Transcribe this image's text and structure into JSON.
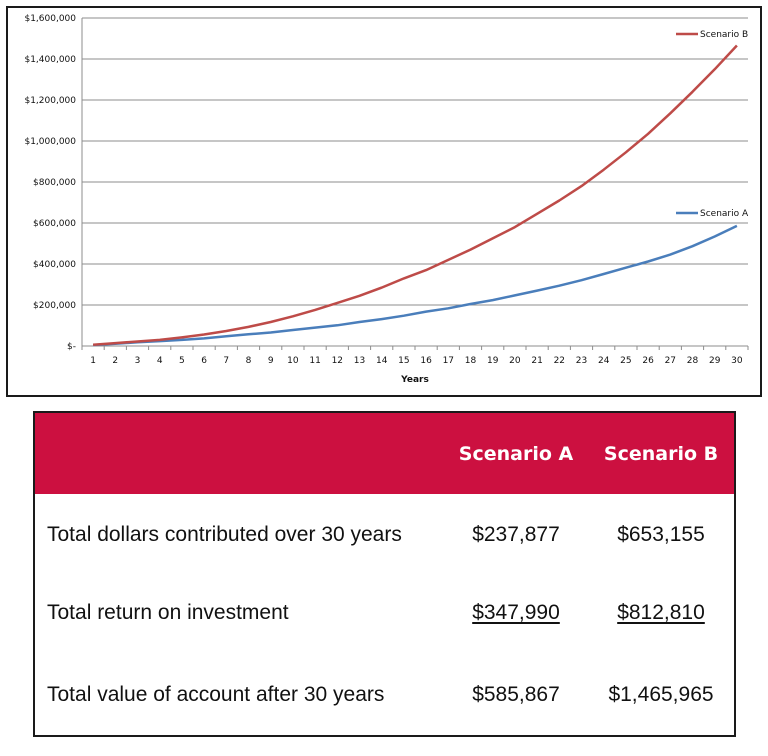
{
  "chart_data": {
    "type": "line",
    "xlabel": "Years",
    "ylabel": "",
    "x": [
      1,
      2,
      3,
      4,
      5,
      6,
      7,
      8,
      9,
      10,
      11,
      12,
      13,
      14,
      15,
      16,
      17,
      18,
      19,
      20,
      21,
      22,
      23,
      24,
      25,
      26,
      27,
      28,
      29,
      30
    ],
    "ylim": [
      0,
      1600000
    ],
    "yticks": [
      0,
      200000,
      400000,
      600000,
      800000,
      1000000,
      1200000,
      1400000,
      1600000
    ],
    "ytick_labels": [
      "$-",
      "$200,000",
      "$400,000",
      "$600,000",
      "$800,000",
      "$1,000,000",
      "$1,200,000",
      "$1,400,000",
      "$1,600,000"
    ],
    "grid": true,
    "series": [
      {
        "name": "Scenario A",
        "color": "#4a7ebb",
        "values": [
          5000,
          11000,
          18000,
          24000,
          30000,
          37000,
          48000,
          57000,
          66000,
          78000,
          90000,
          101000,
          117000,
          131000,
          148000,
          168000,
          184000,
          205000,
          224000,
          247000,
          270000,
          294000,
          321000,
          351000,
          382000,
          412000,
          446000,
          487000,
          534000,
          585867
        ]
      },
      {
        "name": "Scenario B",
        "color": "#be4b48",
        "values": [
          6000,
          14000,
          22000,
          30000,
          42000,
          56000,
          73000,
          93000,
          117000,
          145000,
          176000,
          210000,
          245000,
          285000,
          330000,
          370000,
          420000,
          470000,
          525000,
          580000,
          645000,
          710000,
          780000,
          860000,
          945000,
          1035000,
          1135000,
          1240000,
          1350000,
          1465965
        ]
      }
    ],
    "legend": [
      "Scenario B",
      "Scenario A"
    ],
    "legend_placement": "inline-right"
  },
  "table": {
    "headers": [
      "",
      "Scenario A",
      "Scenario B"
    ],
    "rows": [
      {
        "label": "Total dollars contributed over 30 years",
        "a": "$237,877",
        "b": "$653,155",
        "underline": false
      },
      {
        "label": "Total return on investment",
        "a": "$347,990",
        "b": "$812,810",
        "underline": true
      },
      {
        "label": "Total value of account after 30 years",
        "a": "$585,867",
        "b": "$1,465,965",
        "underline": false
      }
    ],
    "header_color": "#cc1040"
  }
}
